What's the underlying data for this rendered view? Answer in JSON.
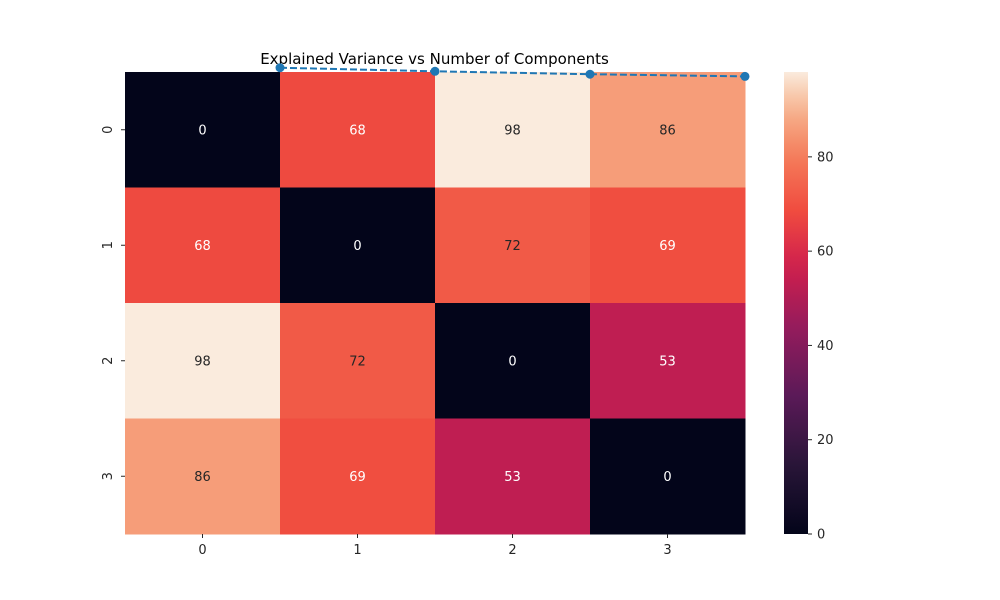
{
  "chart_data": {
    "type": "heatmap",
    "title": "Explained Variance vs Number of Components",
    "x_tick_labels": [
      "0",
      "1",
      "2",
      "3"
    ],
    "y_tick_labels": [
      "0",
      "1",
      "2",
      "3"
    ],
    "matrix": [
      [
        0,
        68,
        98,
        86
      ],
      [
        68,
        0,
        72,
        69
      ],
      [
        98,
        72,
        0,
        53
      ],
      [
        86,
        69,
        53,
        0
      ]
    ],
    "colorbar": {
      "vmin": 0,
      "vmax": 98,
      "ticks": [
        0,
        20,
        40,
        60,
        80
      ],
      "tick_labels": [
        "0",
        "20",
        "40",
        "60",
        "80"
      ],
      "colormap": "rocket"
    },
    "overlay_line": {
      "type": "line",
      "style": "dashed",
      "marker": "circle",
      "color": "#1f77b4",
      "x": [
        1,
        2,
        3,
        4
      ],
      "y": [
        0.963,
        0.994,
        1.019,
        1.038
      ]
    },
    "grid": false,
    "legend": "none"
  }
}
